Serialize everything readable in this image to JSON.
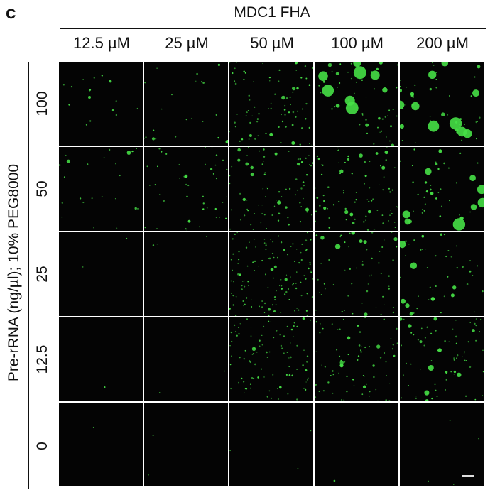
{
  "panel_letter": "c",
  "top_title": "MDC1 FHA",
  "columns": [
    "12.5 µM",
    "25 µM",
    "50 µM",
    "100 µM",
    "200 µM"
  ],
  "y_title": "Pre-rRNA (ng/µl); 10% PEG8000",
  "rows": [
    "100",
    "50",
    "25",
    "12.5",
    "0"
  ],
  "colors": {
    "droplet": "#46e046",
    "background": "#040404"
  }
}
